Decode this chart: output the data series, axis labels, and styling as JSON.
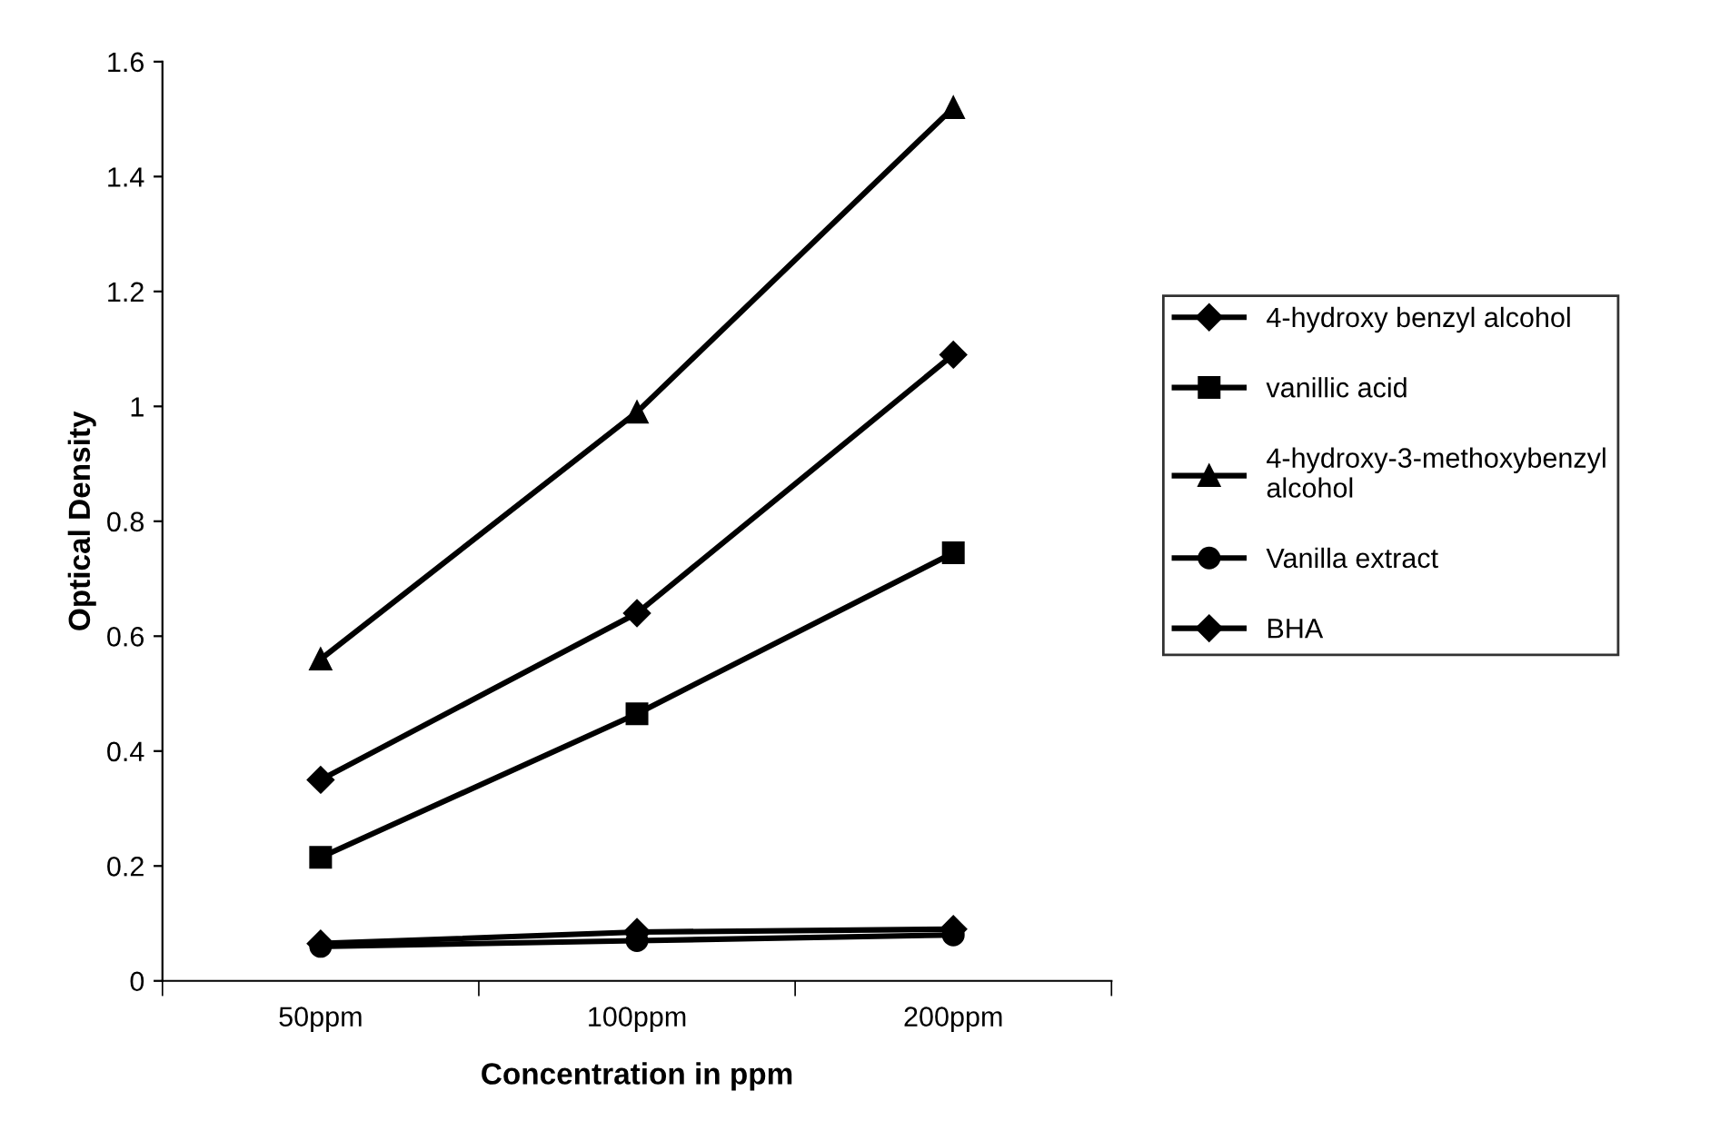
{
  "chart_data": {
    "type": "line",
    "xlabel": "Concentration in ppm",
    "ylabel": "Optical Density",
    "categories": [
      "50ppm",
      "100ppm",
      "200ppm"
    ],
    "series": [
      {
        "name": "4-hydroxy benzyl alcohol",
        "color": "#000000",
        "values": [
          0.065,
          0.085,
          0.09
        ],
        "marker": "diamond"
      },
      {
        "name": "vanillic acid",
        "color": "#000000",
        "values": [
          0.215,
          0.465,
          0.745
        ],
        "marker": "square"
      },
      {
        "name": "4-hydroxy-3-methoxybenzyl\nalcohol",
        "color": "#000000",
        "values": [
          0.56,
          0.99,
          1.52
        ],
        "marker": "triangle"
      },
      {
        "name": "Vanilla extract",
        "color": "#000000",
        "values": [
          0.06,
          0.07,
          0.08
        ],
        "marker": "circle"
      },
      {
        "name": "BHA",
        "color": "#000000",
        "values": [
          0.35,
          0.64,
          1.09
        ],
        "marker": "diamond"
      }
    ],
    "ylim": [
      0,
      1.6
    ],
    "yticks": [
      0,
      0.2,
      0.4,
      0.6,
      0.8,
      {
        "value": 1,
        "label": "1"
      },
      1.2,
      1.4,
      1.6
    ],
    "grid": false,
    "legend": "right",
    "line_style": "solid"
  }
}
